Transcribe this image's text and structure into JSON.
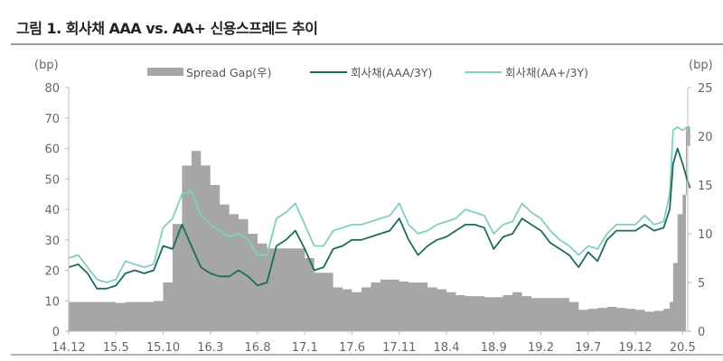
{
  "title": "그림 1. 회사채 AAA vs. AA+ 신용스프레드 추이",
  "chart_data": {
    "type": "line",
    "title": "그림 1. 회사채 AAA vs. AA+ 신용스프레드 추이",
    "left_unit": "(bp)",
    "right_unit": "(bp)",
    "ylim_left": [
      0,
      80
    ],
    "ylim_right": [
      0,
      25
    ],
    "yticks_left": [
      "0",
      "10",
      "20",
      "30",
      "40",
      "50",
      "60",
      "70",
      "80"
    ],
    "yticks_right": [
      "0",
      "5",
      "10",
      "15",
      "20",
      "25"
    ],
    "xticks": [
      "14.12",
      "15.5",
      "15.10",
      "16.3",
      "16.8",
      "17.1",
      "17.6",
      "17.11",
      "18.4",
      "18.9",
      "19.2",
      "19.7",
      "19.12",
      "20.5"
    ],
    "grid": false,
    "legend": "top",
    "colors": {
      "gap": "#a6a6a6",
      "aaa": "#1d6b5e",
      "aaplus": "#7fcfc2"
    },
    "x": [
      "2014-12-01",
      "2015-01-01",
      "2015-02-01",
      "2015-03-01",
      "2015-04-01",
      "2015-05-01",
      "2015-06-01",
      "2015-07-01",
      "2015-08-01",
      "2015-09-01",
      "2015-10-01",
      "2015-11-01",
      "2015-12-01",
      "2016-01-01",
      "2016-02-01",
      "2016-03-01",
      "2016-04-01",
      "2016-05-01",
      "2016-06-01",
      "2016-07-01",
      "2016-08-01",
      "2016-09-01",
      "2016-10-01",
      "2016-11-01",
      "2016-12-01",
      "2017-01-01",
      "2017-02-01",
      "2017-03-01",
      "2017-04-01",
      "2017-05-01",
      "2017-06-01",
      "2017-07-01",
      "2017-08-01",
      "2017-09-01",
      "2017-10-01",
      "2017-11-01",
      "2017-12-01",
      "2018-01-01",
      "2018-02-01",
      "2018-03-01",
      "2018-04-01",
      "2018-05-01",
      "2018-06-01",
      "2018-07-01",
      "2018-08-01",
      "2018-09-01",
      "2018-10-01",
      "2018-11-01",
      "2018-12-01",
      "2019-01-01",
      "2019-02-01",
      "2019-03-01",
      "2019-04-01",
      "2019-05-01",
      "2019-06-01",
      "2019-07-01",
      "2019-08-01",
      "2019-09-01",
      "2019-10-01",
      "2019-11-01",
      "2019-12-01",
      "2020-01-01",
      "2020-02-01",
      "2020-03-01",
      "2020-03-20",
      "2020-04-01",
      "2020-04-15",
      "2020-05-01",
      "2020-05-15",
      "2020-05-25"
    ],
    "series": [
      {
        "name": "Spread Gap(우)",
        "axis": "right",
        "kind": "area",
        "values": [
          3,
          3,
          3,
          3,
          3,
          2.9,
          3,
          3,
          3,
          3.1,
          5,
          11,
          17,
          18.5,
          17,
          15,
          13,
          12,
          11.5,
          10,
          9,
          8.5,
          8.5,
          8.5,
          8.5,
          7.5,
          6,
          6,
          4.5,
          4.3,
          4,
          4.5,
          5,
          5.3,
          5.3,
          5.1,
          5,
          5,
          4.5,
          4.3,
          4,
          3.7,
          3.6,
          3.6,
          3.5,
          3.5,
          3.7,
          4,
          3.6,
          3.4,
          3.4,
          3.4,
          3.4,
          3,
          2.2,
          2.3,
          2.4,
          2.5,
          2.4,
          2.3,
          2.2,
          2,
          2.1,
          2.3,
          3,
          7,
          12,
          14,
          19,
          21
        ]
      },
      {
        "name": "회사채(AAA/3Y)",
        "axis": "left",
        "kind": "line",
        "values": [
          21,
          22,
          19,
          14,
          14,
          15,
          19,
          20,
          19,
          20,
          28,
          27,
          35,
          28,
          21,
          19,
          18,
          18,
          20,
          18,
          15,
          16,
          28,
          30,
          33,
          27,
          20,
          21,
          27,
          28,
          30,
          30,
          31,
          32,
          33,
          37,
          30,
          25,
          28,
          30,
          31,
          33,
          35,
          35,
          34,
          27,
          31,
          32,
          37,
          35,
          33,
          29,
          27,
          25,
          21,
          26,
          23,
          30,
          33,
          33,
          33,
          35,
          33,
          34,
          40,
          55,
          60,
          55,
          50,
          47
        ]
      },
      {
        "name": "회사채(AA+/3Y)",
        "axis": "left",
        "kind": "line",
        "values": [
          24,
          25,
          21,
          17,
          16,
          17,
          23,
          22,
          21,
          22,
          34,
          37,
          45,
          46,
          38,
          35,
          33,
          31,
          32,
          30,
          25,
          25,
          37,
          39,
          42,
          35,
          28,
          28,
          33,
          34,
          35,
          35,
          36,
          37,
          38,
          42,
          35,
          32,
          33,
          35,
          36,
          37,
          40,
          39,
          38,
          32,
          35,
          36,
          42,
          39,
          37,
          33,
          30,
          28,
          25,
          28,
          27,
          32,
          35,
          35,
          35,
          38,
          35,
          36,
          45,
          66,
          67,
          66,
          67,
          67
        ]
      }
    ]
  }
}
